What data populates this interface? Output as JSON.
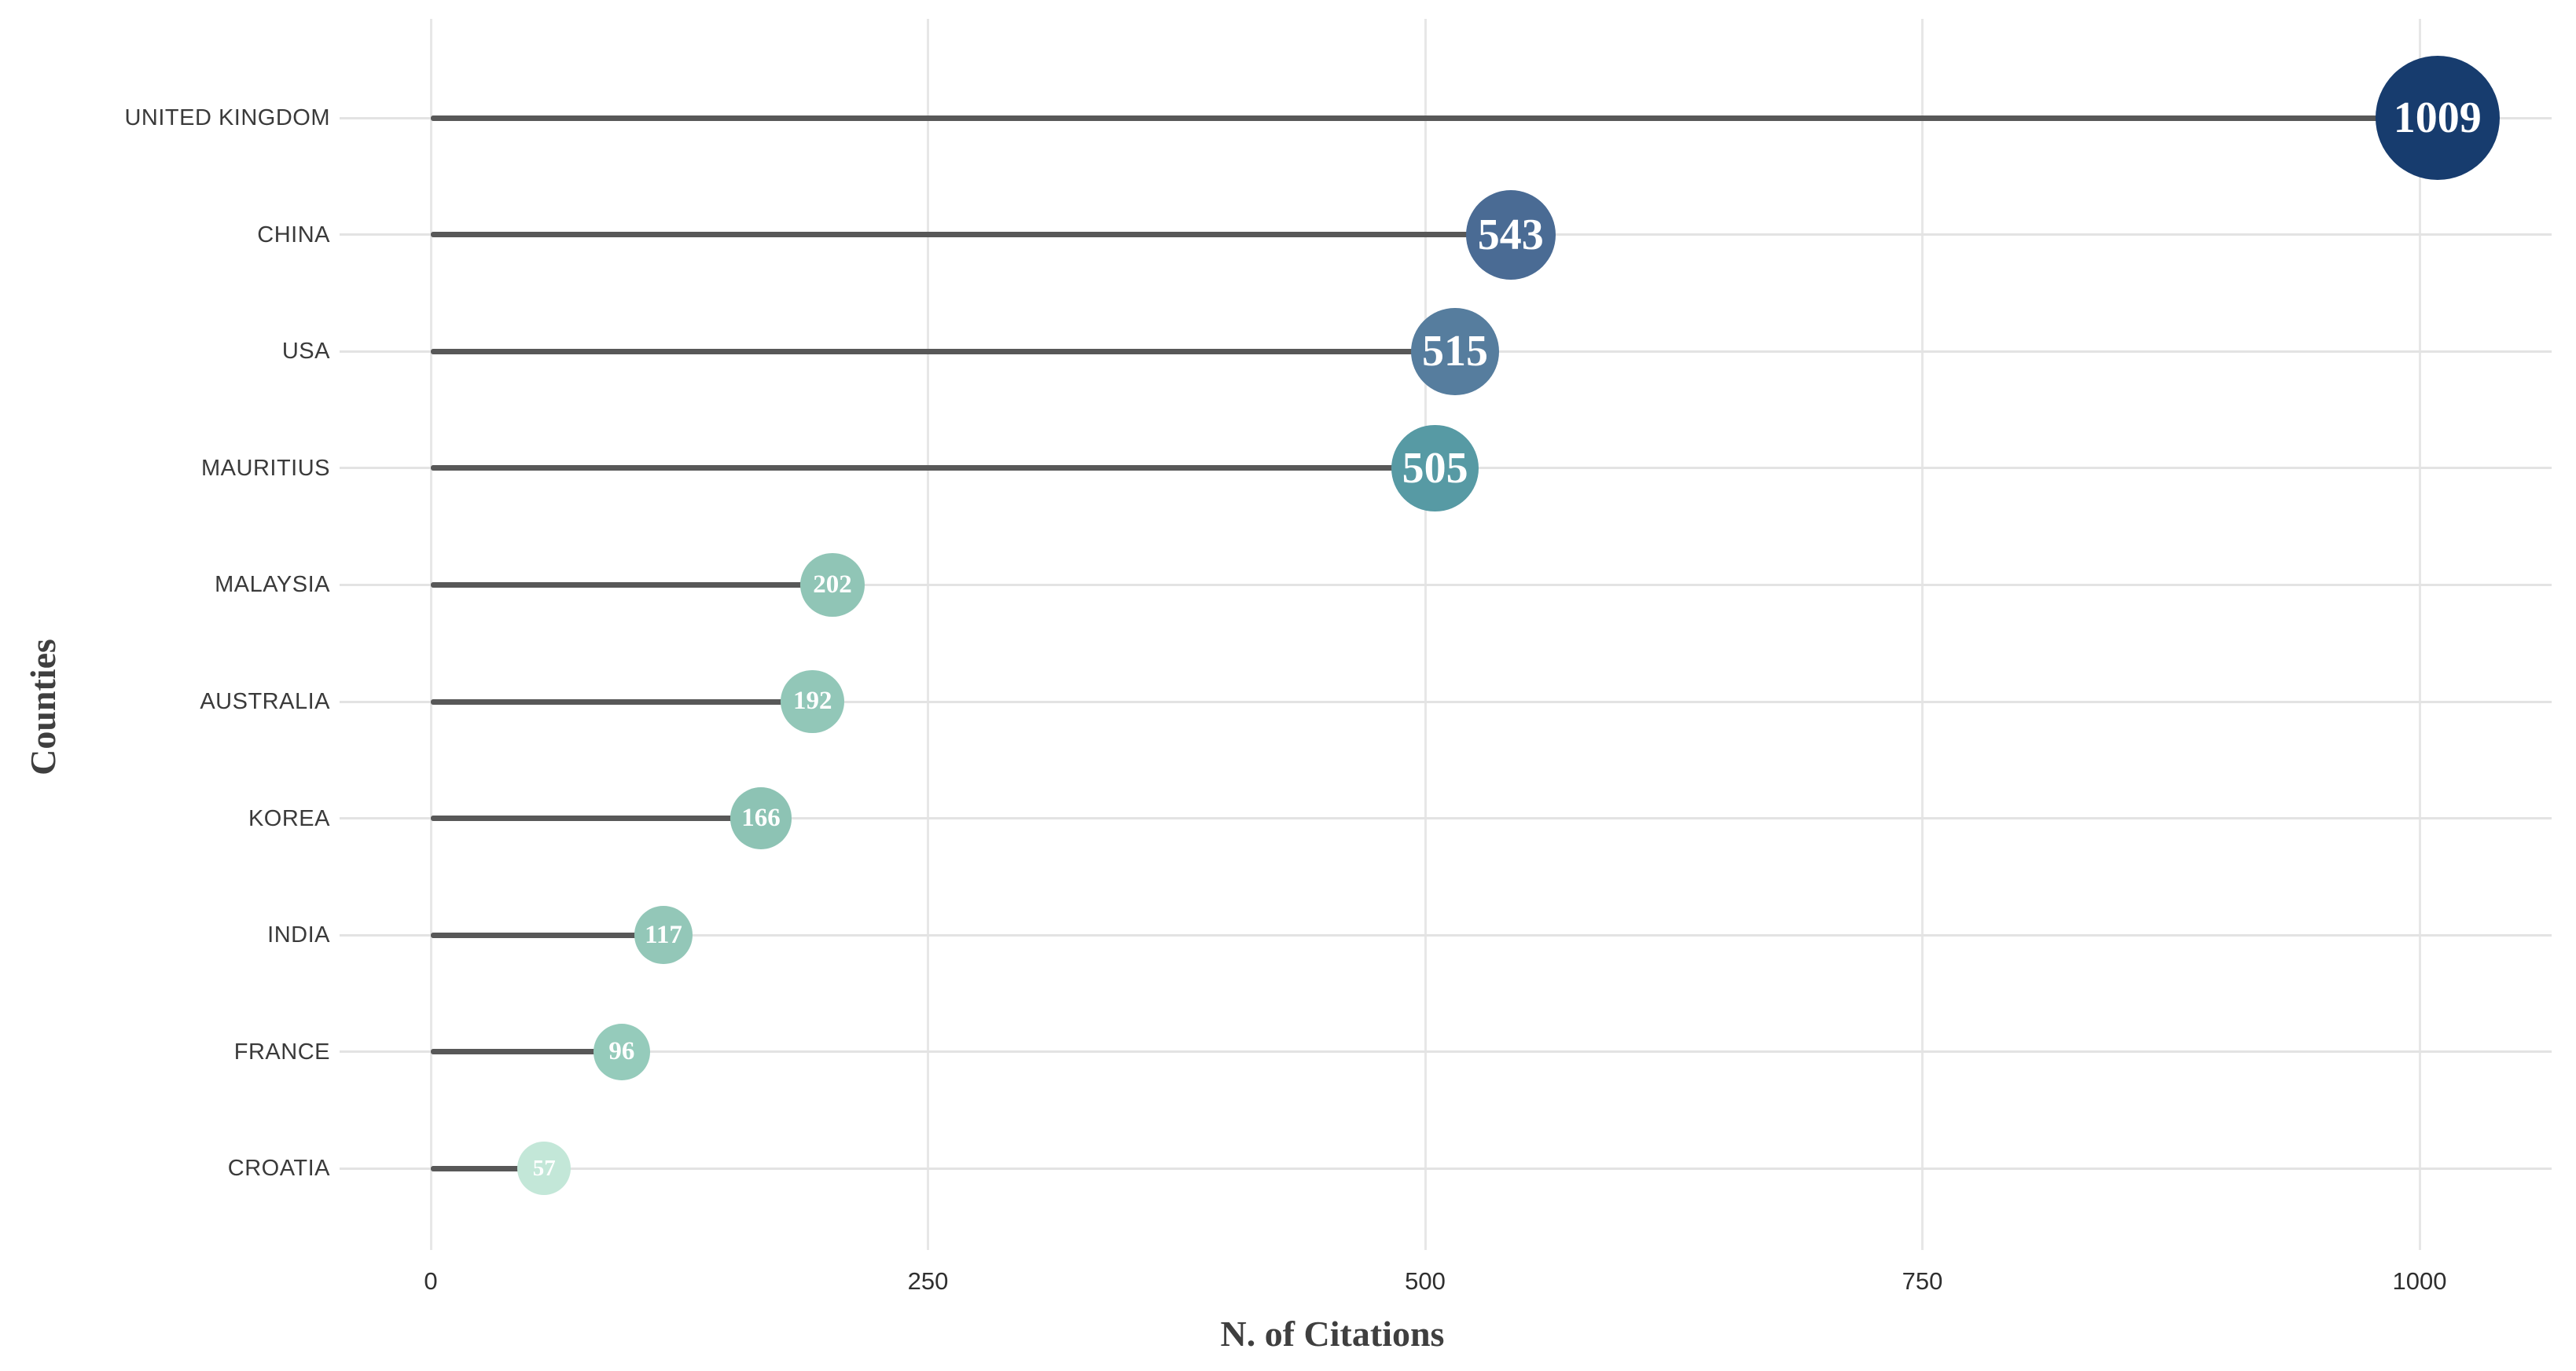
{
  "chart_data": {
    "type": "bar",
    "variant": "horizontal-lollipop-bubble",
    "title": "",
    "xlabel": "N. of Citations",
    "ylabel": "Counties",
    "categories": [
      "UNITED KINGDOM",
      "CHINA",
      "USA",
      "MAURITIUS",
      "MALAYSIA",
      "AUSTRALIA",
      "KOREA",
      "INDIA",
      "FRANCE",
      "CROATIA"
    ],
    "values": [
      1009,
      543,
      515,
      505,
      202,
      192,
      166,
      117,
      96,
      57
    ],
    "value_labels": [
      "1009",
      "543",
      "515",
      "505",
      "202",
      "192",
      "166",
      "117",
      "96",
      "57"
    ],
    "xlim": [
      0,
      1065
    ],
    "xticks": [
      0,
      250,
      500,
      750,
      1000
    ],
    "xtick_labels": [
      "0",
      "250",
      "500",
      "750",
      "1000"
    ],
    "grid": "vertical-light-gray",
    "legend": "none",
    "point_colors": [
      "#173c6e",
      "#4a6b94",
      "#567d9e",
      "#579aa4",
      "#90c5b6",
      "#92c7b8",
      "#8dc3b4",
      "#93c7b8",
      "#95cbbb",
      "#c3e7d8"
    ],
    "bubble_text_color": "#ffffff",
    "stem_color": "#585858",
    "gridline_color": "#e7e7e7",
    "row_line_color": "#e3e3e3",
    "label_color": "#3a3a3a",
    "axis_title_color": "#3f3f3f"
  }
}
